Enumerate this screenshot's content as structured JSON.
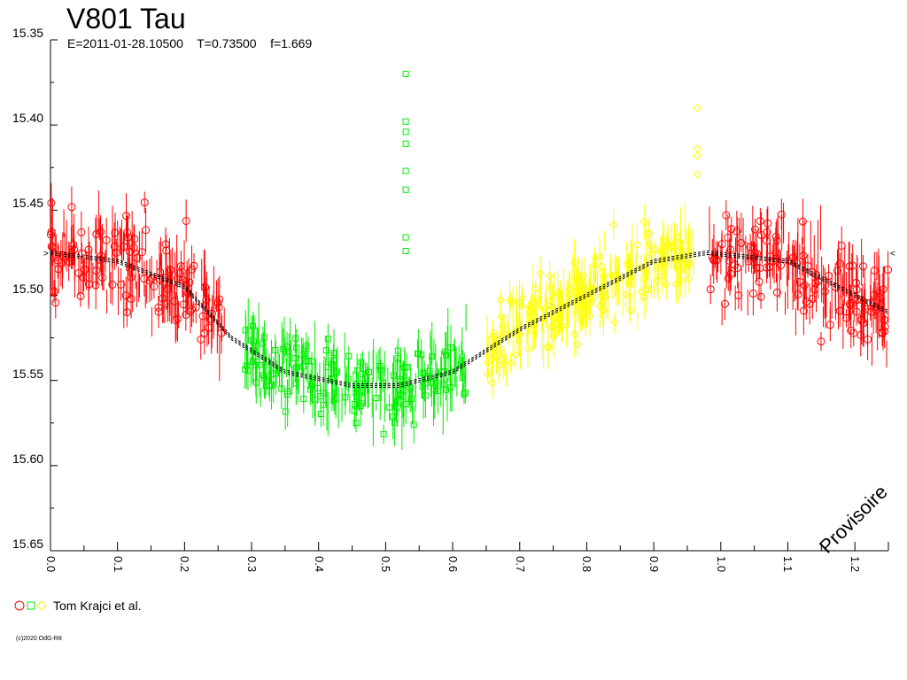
{
  "chart_data": {
    "type": "scatter",
    "title": "V801 Tau",
    "subtitle_parts": {
      "epoch": "E=2011-01-28.10500",
      "period": "T=0.73500",
      "f": "f=1.669"
    },
    "xlabel": "",
    "ylabel": "",
    "xlim": [
      0.0,
      1.25
    ],
    "ylim": [
      15.35,
      15.65
    ],
    "y_inverted": true,
    "x_ticks": [
      "0.0",
      "0.1",
      "0.2",
      "0.3",
      "0.4",
      "0.5",
      "0.6",
      "0.7",
      "0.8",
      "0.9",
      "1.0",
      "1.1",
      "1.2"
    ],
    "y_ticks": [
      "15.35",
      "15.40",
      "15.45",
      "15.50",
      "15.55",
      "15.60",
      "15.65"
    ],
    "grid": false,
    "series": [
      {
        "name": "",
        "color": "#ff0000",
        "marker": "circle",
        "phase_range": [
          0.0,
          0.26
        ],
        "center_mag": 15.49,
        "scatter": 0.025
      },
      {
        "name": "",
        "color": "#00ee00",
        "marker": "square",
        "phase_range": [
          0.29,
          0.62
        ],
        "center_mag": 15.555,
        "scatter": 0.02
      },
      {
        "name": "",
        "color": "#ffff00",
        "marker": "diamond",
        "phase_range": [
          0.65,
          0.96
        ],
        "center_mag": 15.51,
        "scatter": 0.02
      }
    ],
    "fit_curve": {
      "color": "#000000",
      "points": [
        [
          0.0,
          15.475
        ],
        [
          0.1,
          15.48
        ],
        [
          0.2,
          15.495
        ],
        [
          0.27,
          15.525
        ],
        [
          0.35,
          15.545
        ],
        [
          0.45,
          15.553
        ],
        [
          0.52,
          15.553
        ],
        [
          0.6,
          15.545
        ],
        [
          0.7,
          15.52
        ],
        [
          0.8,
          15.5
        ],
        [
          0.9,
          15.48
        ],
        [
          0.98,
          15.475
        ],
        [
          1.1,
          15.48
        ],
        [
          1.25,
          15.51
        ]
      ]
    },
    "outliers": [
      {
        "color": "#00ee00",
        "marker": "square",
        "x": 0.53,
        "y": [
          15.37,
          15.398,
          15.404,
          15.411,
          15.427,
          15.438,
          15.466,
          15.474
        ]
      },
      {
        "color": "#ffff00",
        "marker": "diamond",
        "x": 0.965,
        "y": [
          15.39,
          15.414,
          15.418,
          15.429
        ]
      }
    ],
    "watermark": "Provisoire"
  },
  "legend": {
    "label": "Tom Krajci et al."
  },
  "footer": {
    "copyright": "(c)2020 OdG-R8"
  }
}
